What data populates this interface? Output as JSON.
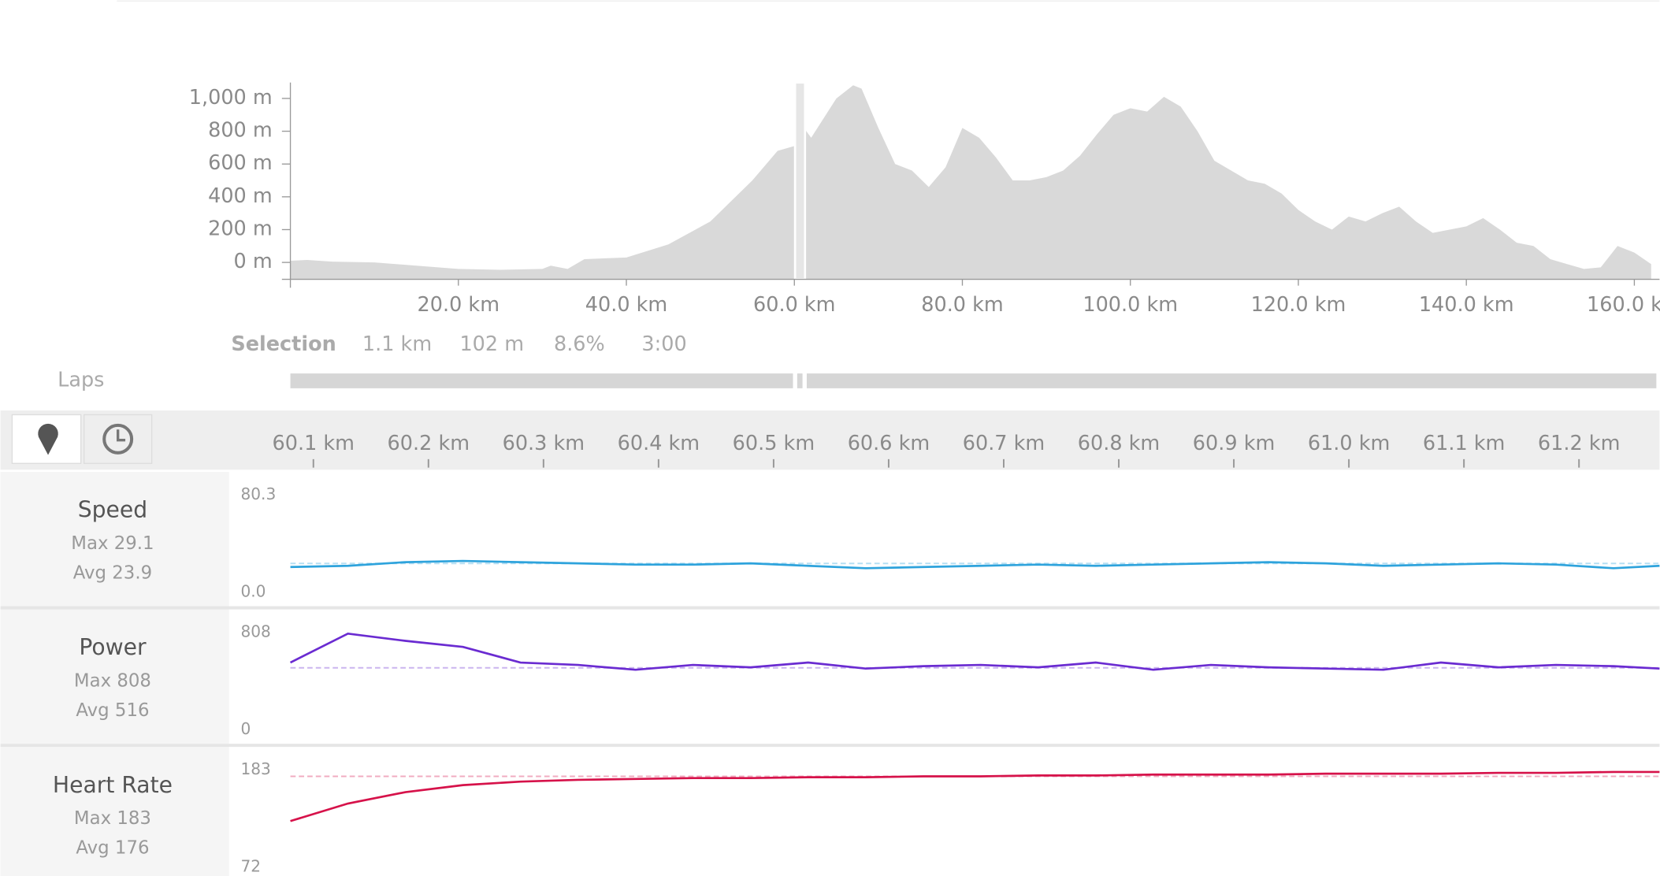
{
  "elevation": {
    "xlim": [
      0,
      163
    ],
    "ylim": [
      -103,
      1097
    ],
    "xticks": [
      {
        "value": 20,
        "label": "20.0 km"
      },
      {
        "value": 40,
        "label": "40.0 km"
      },
      {
        "value": 60,
        "label": "60.0 km"
      },
      {
        "value": 80,
        "label": "80.0 km"
      },
      {
        "value": 100,
        "label": "100.0 km"
      },
      {
        "value": 120,
        "label": "120.0 km"
      },
      {
        "value": 140,
        "label": "140.0 km"
      },
      {
        "value": 160,
        "label": "160.0 km"
      }
    ],
    "yticks": [
      {
        "value": 1000,
        "label": "1,000 m"
      },
      {
        "value": 800,
        "label": "800 m"
      },
      {
        "value": 600,
        "label": "600 m"
      },
      {
        "value": 400,
        "label": "400 m"
      },
      {
        "value": 200,
        "label": "200 m"
      },
      {
        "value": 0,
        "label": "0 m"
      }
    ],
    "x": [
      0,
      2,
      5,
      10,
      15,
      20,
      25,
      30,
      31,
      33,
      35,
      40,
      45,
      50,
      55,
      58,
      60,
      61,
      62,
      65,
      67,
      68,
      70,
      72,
      74,
      76,
      78,
      80,
      82,
      84,
      86,
      88,
      90,
      92,
      94,
      96,
      98,
      100,
      102,
      104,
      106,
      108,
      110,
      112,
      114,
      116,
      118,
      120,
      122,
      124,
      126,
      128,
      130,
      132,
      134,
      136,
      138,
      140,
      142,
      144,
      146,
      148,
      150,
      152,
      154,
      156,
      158,
      160,
      162
    ],
    "values": [
      10,
      15,
      5,
      0,
      -20,
      -40,
      -45,
      -40,
      -20,
      -40,
      20,
      30,
      110,
      250,
      500,
      680,
      710,
      830,
      760,
      1000,
      1080,
      1060,
      820,
      600,
      560,
      460,
      580,
      820,
      760,
      640,
      500,
      500,
      520,
      560,
      650,
      780,
      900,
      940,
      920,
      1010,
      950,
      800,
      620,
      560,
      500,
      480,
      420,
      320,
      250,
      200,
      280,
      250,
      300,
      340,
      250,
      180,
      200,
      220,
      270,
      200,
      120,
      100,
      20,
      -10,
      -40,
      -30,
      100,
      60,
      -10
    ]
  },
  "selection": {
    "label": "Selection",
    "distance": "1.1 km",
    "elevation": "102 m",
    "grade": "8.6%",
    "time": "3:00"
  },
  "laps": {
    "label": "Laps"
  },
  "distance_axis": {
    "xlim": [
      60.08,
      61.27
    ],
    "xticks": [
      {
        "value": 60.1,
        "label": "60.1 km"
      },
      {
        "value": 60.2,
        "label": "60.2 km"
      },
      {
        "value": 60.3,
        "label": "60.3 km"
      },
      {
        "value": 60.4,
        "label": "60.4 km"
      },
      {
        "value": 60.5,
        "label": "60.5 km"
      },
      {
        "value": 60.6,
        "label": "60.6 km"
      },
      {
        "value": 60.7,
        "label": "60.7 km"
      },
      {
        "value": 60.8,
        "label": "60.8 km"
      },
      {
        "value": 60.9,
        "label": "60.9 km"
      },
      {
        "value": 61.0,
        "label": "61.0 km"
      },
      {
        "value": 61.1,
        "label": "61.1 km"
      },
      {
        "value": 61.2,
        "label": "61.2 km"
      }
    ],
    "x": [
      60.08,
      60.13,
      60.18,
      60.23,
      60.28,
      60.33,
      60.38,
      60.43,
      60.48,
      60.53,
      60.58,
      60.63,
      60.68,
      60.73,
      60.78,
      60.83,
      60.88,
      60.93,
      60.98,
      61.03,
      61.08,
      61.13,
      61.18,
      61.23,
      61.27
    ]
  },
  "streams": [
    {
      "name": "Speed",
      "color": "#2ea3dc",
      "max_label": "Max 29.1",
      "avg": {
        "label": "Avg 23.9",
        "value": 23.9
      },
      "ylim": [
        0,
        80.3
      ],
      "yticks": [
        {
          "value": 0,
          "label": "0.0"
        },
        80.3
      ],
      "values": [
        21,
        22,
        25,
        26,
        25,
        24,
        23,
        23,
        24,
        22,
        20,
        21,
        22,
        23,
        22,
        23,
        24,
        25,
        24,
        22,
        23,
        24,
        23,
        20,
        22
      ]
    },
    {
      "name": "Power",
      "color": "#6a2bd1",
      "max_label": "Max 808",
      "avg": {
        "label": "Avg 516",
        "value": 516
      },
      "ylim": [
        0,
        808
      ],
      "yticks": [
        0,
        808
      ],
      "values": [
        560,
        800,
        740,
        690,
        560,
        540,
        500,
        540,
        520,
        560,
        510,
        530,
        540,
        520,
        560,
        500,
        540,
        520,
        510,
        500,
        560,
        520,
        540,
        530,
        510
      ]
    },
    {
      "name": "Heart Rate",
      "color": "#d6124a",
      "max_label": "Max 183",
      "avg": {
        "label": "Avg 176",
        "value": 176
      },
      "ylim": [
        72,
        183
      ],
      "yticks": [
        72,
        183
      ],
      "values": [
        125,
        145,
        158,
        166,
        170,
        172,
        173,
        174,
        174,
        175,
        175,
        176,
        176,
        177,
        177,
        178,
        178,
        178,
        179,
        179,
        179,
        180,
        180,
        181,
        181
      ]
    }
  ]
}
